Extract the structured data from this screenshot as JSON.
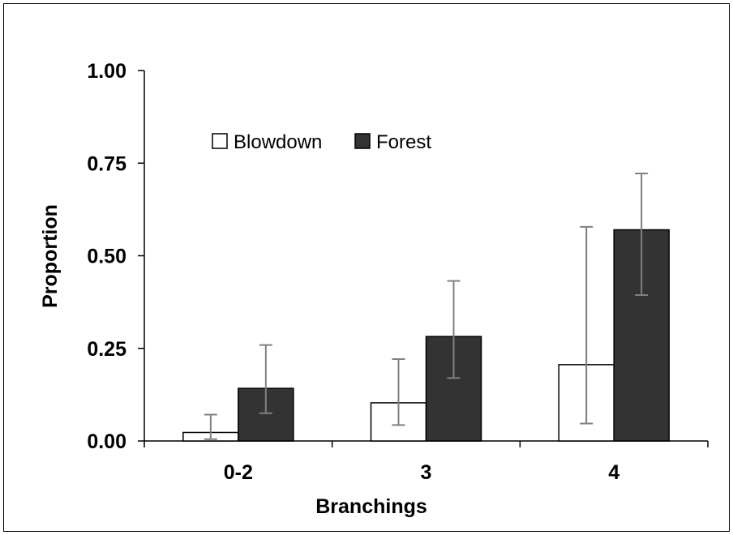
{
  "chart_data": {
    "type": "bar",
    "title": "",
    "xlabel": "Branchings",
    "ylabel": "Proportion",
    "categories": [
      "0-2",
      "3",
      "4"
    ],
    "ylim": [
      0,
      1
    ],
    "yticks": [
      "0.00",
      "0.25",
      "0.50",
      "0.75",
      "1.00"
    ],
    "ytick_values": [
      0,
      0.25,
      0.5,
      0.75,
      1.0
    ],
    "grid": false,
    "legend_position": "top-left",
    "series": [
      {
        "name": "Blowdown",
        "color": "#ffffff",
        "values": [
          0.023,
          0.103,
          0.206
        ],
        "err_low": [
          0.005,
          0.043,
          0.047
        ],
        "err_high": [
          0.071,
          0.221,
          0.578
        ]
      },
      {
        "name": "Forest",
        "color": "#333333",
        "values": [
          0.142,
          0.282,
          0.57
        ],
        "err_low": [
          0.075,
          0.17,
          0.394
        ],
        "err_high": [
          0.259,
          0.432,
          0.722
        ]
      }
    ],
    "error_bar_color": "#808080"
  }
}
